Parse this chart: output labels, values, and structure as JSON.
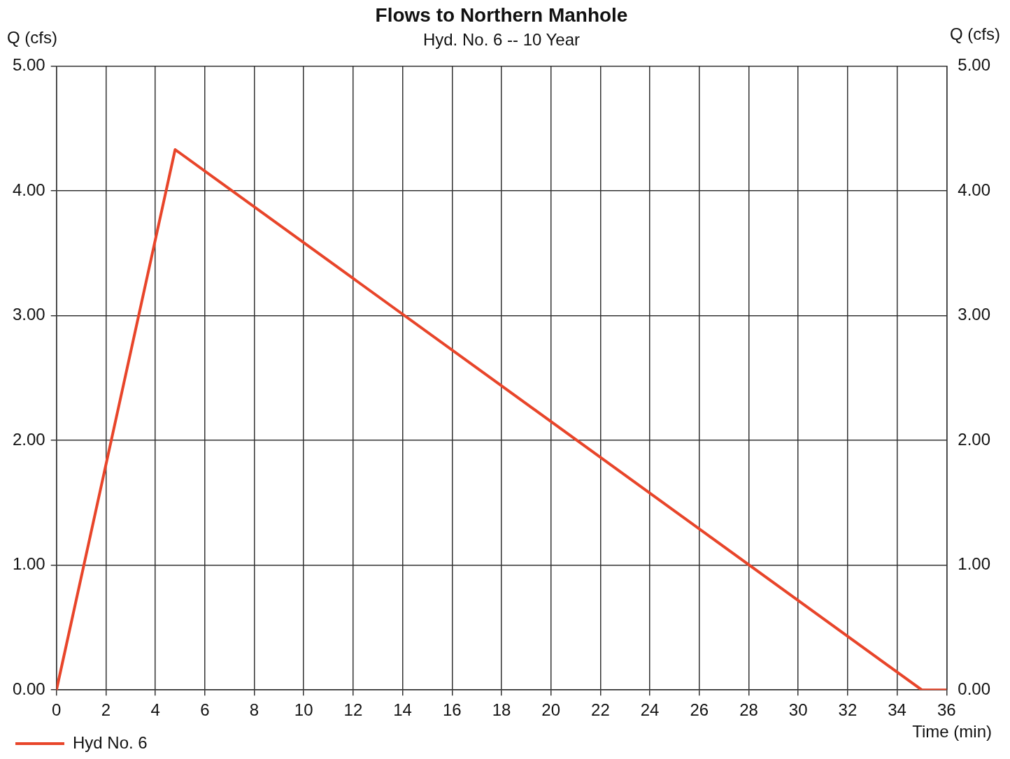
{
  "chart_data": {
    "type": "line",
    "title": "Flows to Northern Manhole",
    "subtitle": "Hyd. No. 6 -- 10 Year",
    "xlabel": "Time (min)",
    "ylabel": "Q (cfs)",
    "y2label": "Q (cfs)",
    "series": [
      {
        "name": "Hyd No. 6",
        "color": "#e8452a",
        "x": [
          0,
          4.8,
          35,
          36
        ],
        "values": [
          0,
          4.33,
          0,
          0
        ]
      }
    ],
    "xlim": [
      0,
      36
    ],
    "xticks": [
      0,
      2,
      4,
      6,
      8,
      10,
      12,
      14,
      16,
      18,
      20,
      22,
      24,
      26,
      28,
      30,
      32,
      34,
      36
    ],
    "ylim": [
      0,
      5
    ],
    "yticks": [
      {
        "value": 0,
        "label": "0.00"
      },
      {
        "value": 1,
        "label": "1.00"
      },
      {
        "value": 2,
        "label": "2.00"
      },
      {
        "value": 3,
        "label": "3.00"
      },
      {
        "value": 4,
        "label": "4.00"
      },
      {
        "value": 5,
        "label": "5.00"
      }
    ],
    "y2lim": [
      0,
      5
    ],
    "y2ticks": [
      {
        "value": 0,
        "label": "0.00"
      },
      {
        "value": 1,
        "label": "1.00"
      },
      {
        "value": 2,
        "label": "2.00"
      },
      {
        "value": 3,
        "label": "3.00"
      },
      {
        "value": 4,
        "label": "4.00"
      },
      {
        "value": 5,
        "label": "5.00"
      }
    ],
    "grid": true,
    "legend": "bottom left",
    "marker": "none",
    "line_style": "solid"
  }
}
